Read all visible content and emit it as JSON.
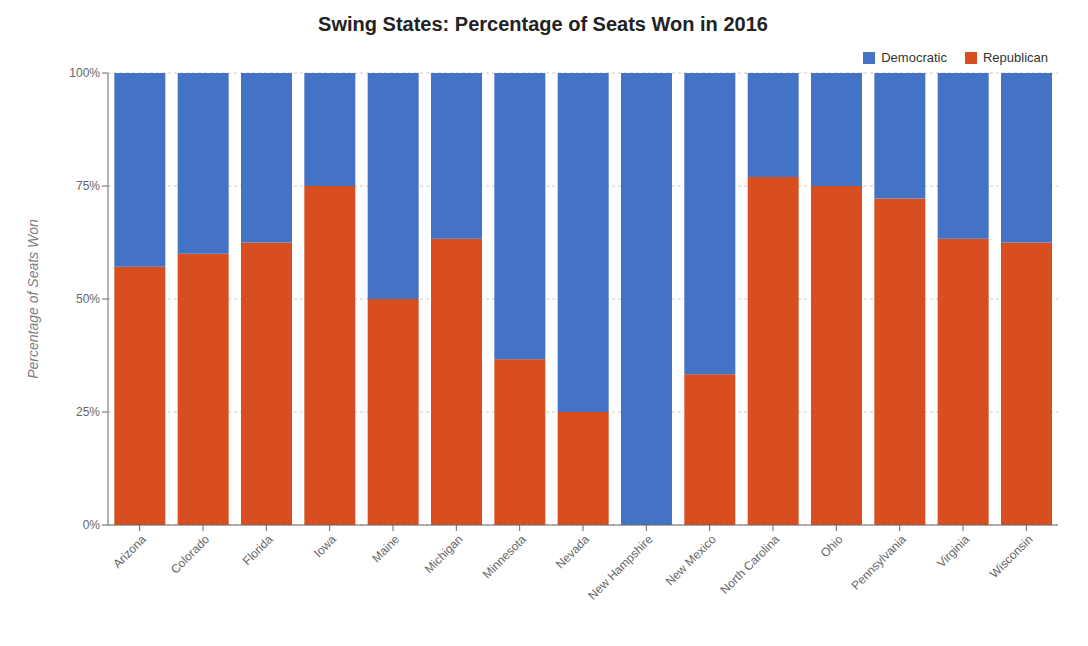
{
  "chart_data": {
    "type": "bar",
    "title": "Swing States: Percentage of Seats Won in 2016",
    "y_label": "Percentage of Seats Won",
    "categories": [
      "Arizona",
      "Colorado",
      "Florida",
      "Iowa",
      "Maine",
      "Michigan",
      "Minnesota",
      "Nevada",
      "New Hampshire",
      "New Mexico",
      "North Carolina",
      "Ohio",
      "Pennsylvania",
      "Virginia",
      "Wisconsin"
    ],
    "series": [
      {
        "name": "Republican",
        "color": "#D94E1F",
        "values": [
          57.14,
          60.0,
          62.5,
          75.0,
          50.0,
          63.33,
          36.67,
          25.0,
          0.0,
          33.33,
          77.0,
          75.0,
          72.22,
          63.33,
          62.5
        ]
      },
      {
        "name": "Democratic",
        "color": "#4472C4",
        "values": [
          42.86,
          40.0,
          37.5,
          25.0,
          50.0,
          36.67,
          63.33,
          75.0,
          100.0,
          66.67,
          23.0,
          25.0,
          27.78,
          36.67,
          37.5
        ]
      }
    ],
    "stacked": true,
    "ylim": [
      0,
      100
    ],
    "yticks": [
      {
        "value": 0,
        "label": "0%"
      },
      {
        "value": 25,
        "label": "25%"
      },
      {
        "value": 50,
        "label": "50%"
      },
      {
        "value": 75,
        "label": "75%"
      },
      {
        "value": 100,
        "label": "100%"
      }
    ],
    "grid": true,
    "legend": "upper right"
  }
}
